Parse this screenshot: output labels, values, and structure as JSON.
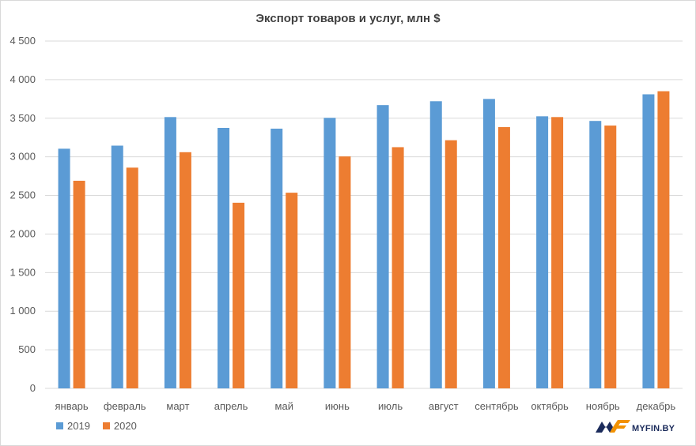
{
  "chart_data": {
    "type": "bar",
    "title": "Экспорт товаров и услуг, млн $",
    "categories": [
      "январь",
      "февраль",
      "март",
      "апрель",
      "май",
      "июнь",
      "июль",
      "август",
      "сентябрь",
      "октябрь",
      "ноябрь",
      "декабрь"
    ],
    "series": [
      {
        "name": "2019",
        "color": "#5b9bd5",
        "values": [
          3105,
          3145,
          3515,
          3375,
          3365,
          3505,
          3670,
          3720,
          3750,
          3525,
          3465,
          3810
        ]
      },
      {
        "name": "2020",
        "color": "#ed7d31",
        "values": [
          2690,
          2860,
          3060,
          2405,
          2535,
          3005,
          3125,
          3215,
          3385,
          3515,
          3405,
          3850
        ]
      }
    ],
    "ylim": [
      0,
      4500
    ],
    "yticks": [
      0,
      500,
      1000,
      1500,
      2000,
      2500,
      3000,
      3500,
      4000,
      4500
    ],
    "ytick_labels": [
      "0",
      "500",
      "1 000",
      "1 500",
      "2 000",
      "2 500",
      "3 000",
      "3 500",
      "4 000",
      "4 500"
    ],
    "grid": true,
    "legend_position": "bottom-left"
  },
  "logo": {
    "text": "MYFIN.BY",
    "icon": "myfin-logo-icon"
  }
}
